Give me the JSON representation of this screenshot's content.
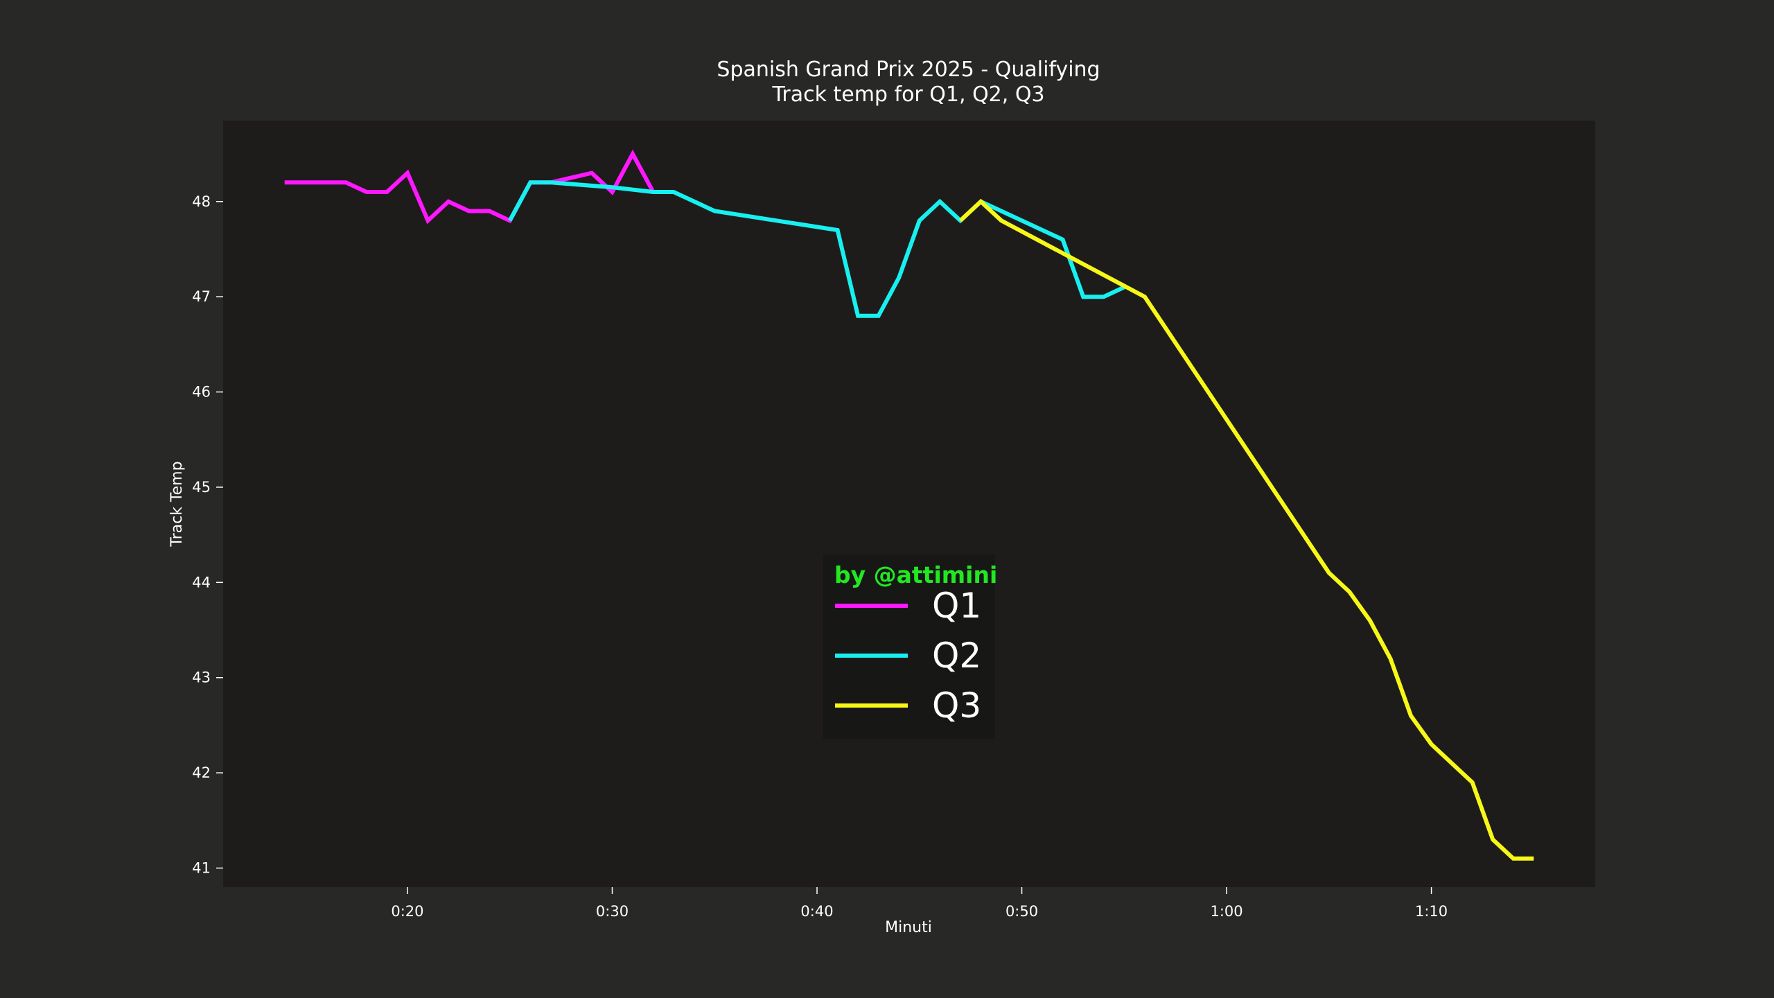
{
  "colors": {
    "background": "#282826",
    "plot_background": "#1d1c1a",
    "axis_text": "#ffffff",
    "credit": "#22e822",
    "legend_background": "#161616"
  },
  "credit": "by @attimini",
  "chart_data": {
    "type": "line",
    "title": "Spanish Grand Prix 2025 - Qualifying",
    "subtitle": "Track temp for Q1, Q2, Q3",
    "xlabel": "Minuti",
    "ylabel": "Track Temp",
    "xlim": [
      "0:11",
      "1:18"
    ],
    "ylim": [
      40.8,
      48.85
    ],
    "x_ticks": [
      "0:20",
      "0:30",
      "0:40",
      "0:50",
      "1:00",
      "1:10"
    ],
    "y_ticks": [
      41,
      42,
      43,
      44,
      45,
      46,
      47,
      48
    ],
    "grid": false,
    "legend_position": "center-bottom",
    "series": [
      {
        "name": "Q1",
        "color": "#ff18ff",
        "x": [
          "0:14",
          "0:15",
          "0:16",
          "0:17",
          "0:18",
          "0:19",
          "0:20",
          "0:21",
          "0:22",
          "0:23",
          "0:24",
          "0:25",
          "0:26",
          "0:27",
          "0:28",
          "0:29",
          "0:30",
          "0:31",
          "0:32"
        ],
        "y": [
          48.2,
          48.2,
          48.2,
          48.2,
          48.1,
          48.1,
          48.3,
          47.8,
          48.0,
          47.9,
          47.9,
          47.8,
          48.2,
          48.2,
          48.25,
          48.3,
          48.1,
          48.5,
          48.1
        ]
      },
      {
        "name": "Q2",
        "color": "#18f0f0",
        "x": [
          "0:25",
          "0:26",
          "0:27",
          "0:30",
          "0:32",
          "0:33",
          "0:35",
          "0:41",
          "0:42",
          "0:43",
          "0:44",
          "0:45",
          "0:46",
          "0:47",
          "0:48",
          "0:52",
          "0:53",
          "0:54",
          "0:55"
        ],
        "y": [
          47.8,
          48.2,
          48.2,
          48.15,
          48.1,
          48.1,
          47.9,
          47.7,
          46.8,
          46.8,
          47.2,
          47.8,
          48.0,
          47.8,
          48.0,
          47.6,
          47.0,
          47.0,
          47.1
        ]
      },
      {
        "name": "Q3",
        "color": "#f8f818",
        "x": [
          "0:47",
          "0:48",
          "0:49",
          "0:56",
          "1:05",
          "1:06",
          "1:07",
          "1:08",
          "1:09",
          "1:10",
          "1:12",
          "1:13",
          "1:14",
          "1:15"
        ],
        "y": [
          47.8,
          48.0,
          47.8,
          47.0,
          44.1,
          43.9,
          43.6,
          43.2,
          42.6,
          42.3,
          41.9,
          41.3,
          41.1,
          41.1
        ]
      }
    ]
  }
}
